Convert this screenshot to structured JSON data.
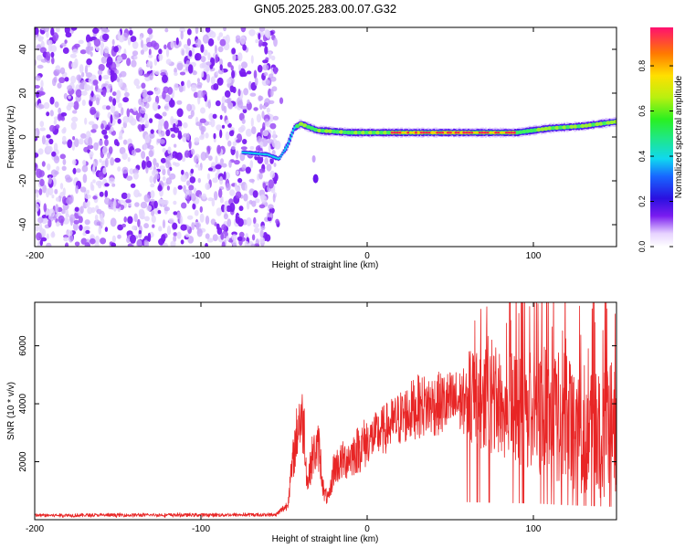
{
  "title": "GN05.2025.283.00.07.G32",
  "chart_data": [
    {
      "type": "heatmap",
      "id": "spectrogram",
      "xlabel": "Height of straight line (km)",
      "ylabel": "Frequency (Hz)",
      "xlim": [
        -200,
        150
      ],
      "ylim": [
        -50,
        50
      ],
      "xticks": [
        -200,
        -100,
        0,
        100
      ],
      "yticks": [
        -40,
        -20,
        0,
        20,
        40
      ],
      "noise_region": {
        "x": [
          -200,
          -55
        ],
        "y": [
          -50,
          50
        ]
      },
      "main_trace": [
        {
          "x": -75,
          "y": -7
        },
        {
          "x": -60,
          "y": -8
        },
        {
          "x": -53,
          "y": -10
        },
        {
          "x": -48,
          "y": -4
        },
        {
          "x": -44,
          "y": 4
        },
        {
          "x": -40,
          "y": 6
        },
        {
          "x": -30,
          "y": 3
        },
        {
          "x": -10,
          "y": 2
        },
        {
          "x": 10,
          "y": 2
        },
        {
          "x": 40,
          "y": 2
        },
        {
          "x": 70,
          "y": 2
        },
        {
          "x": 90,
          "y": 2
        },
        {
          "x": 100,
          "y": 3
        },
        {
          "x": 110,
          "y": 4
        },
        {
          "x": 130,
          "y": 5
        },
        {
          "x": 150,
          "y": 7
        }
      ],
      "hot_segment": {
        "x": [
          15,
          90
        ],
        "y": 2
      },
      "side_spot": {
        "x": -31,
        "y": -19
      },
      "colorbar": {
        "label": "Normalized spectral amplitude",
        "ticks": [
          "0.0",
          "0.2",
          "0.4",
          "0.6",
          "0.8"
        ],
        "range": [
          0,
          0.97
        ]
      }
    },
    {
      "type": "line",
      "id": "snr",
      "xlabel": "Height of straight line (km)",
      "ylabel": "SNR (10 * v/v)",
      "xlim": [
        -200,
        150
      ],
      "ylim": [
        0,
        7500
      ],
      "xticks": [
        -200,
        -100,
        0,
        100
      ],
      "yticks": [
        2000,
        4000,
        6000
      ],
      "color": "#e82525",
      "envelope": [
        {
          "x": -200,
          "y": 150
        },
        {
          "x": -55,
          "y": 170
        },
        {
          "x": -48,
          "y": 500
        },
        {
          "x": -44,
          "y": 2300
        },
        {
          "x": -41,
          "y": 3500
        },
        {
          "x": -38,
          "y": 3300
        },
        {
          "x": -36,
          "y": 1200
        },
        {
          "x": -33,
          "y": 2200
        },
        {
          "x": -29,
          "y": 2500
        },
        {
          "x": -26,
          "y": 900
        },
        {
          "x": -23,
          "y": 700
        },
        {
          "x": -20,
          "y": 1800
        },
        {
          "x": -10,
          "y": 2200
        },
        {
          "x": 0,
          "y": 2700
        },
        {
          "x": 15,
          "y": 3300
        },
        {
          "x": 30,
          "y": 3900
        },
        {
          "x": 60,
          "y": 4100
        },
        {
          "x": 80,
          "y": 3900
        },
        {
          "x": 100,
          "y": 3800
        },
        {
          "x": 120,
          "y": 3400
        },
        {
          "x": 150,
          "y": 3000
        }
      ]
    }
  ]
}
